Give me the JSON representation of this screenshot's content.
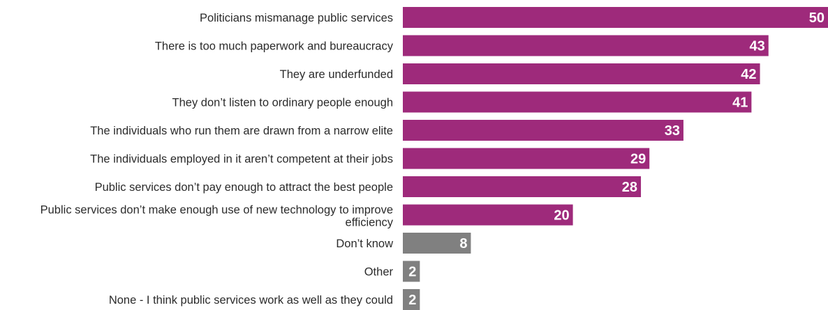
{
  "chart_data": {
    "type": "bar",
    "orientation": "horizontal",
    "categories": [
      "Politicians mismanage public services",
      "There is too much paperwork and bureaucracy",
      "They are underfunded",
      "They don’t listen to ordinary people enough",
      "The individuals who run them are drawn from a narrow elite",
      "The individuals employed in it aren’t competent at their jobs",
      "Public services don’t pay enough to attract the best people",
      "Public services don’t make enough use of new technology to improve efficiency",
      "Don’t know",
      "Other",
      "None - I think public services work as well as they could"
    ],
    "values": [
      50,
      43,
      42,
      41,
      33,
      29,
      28,
      20,
      8,
      2,
      2
    ],
    "value_labels": [
      "50",
      "43",
      "42",
      "41",
      "33",
      "29",
      "28",
      "20",
      "8",
      "2",
      "2"
    ],
    "bar_colors": [
      "#9e2a7b",
      "#9e2a7b",
      "#9e2a7b",
      "#9e2a7b",
      "#9e2a7b",
      "#9e2a7b",
      "#9e2a7b",
      "#9e2a7b",
      "#808080",
      "#808080",
      "#808080"
    ],
    "xlim": [
      0,
      50
    ],
    "grid": false,
    "legend": "none"
  }
}
